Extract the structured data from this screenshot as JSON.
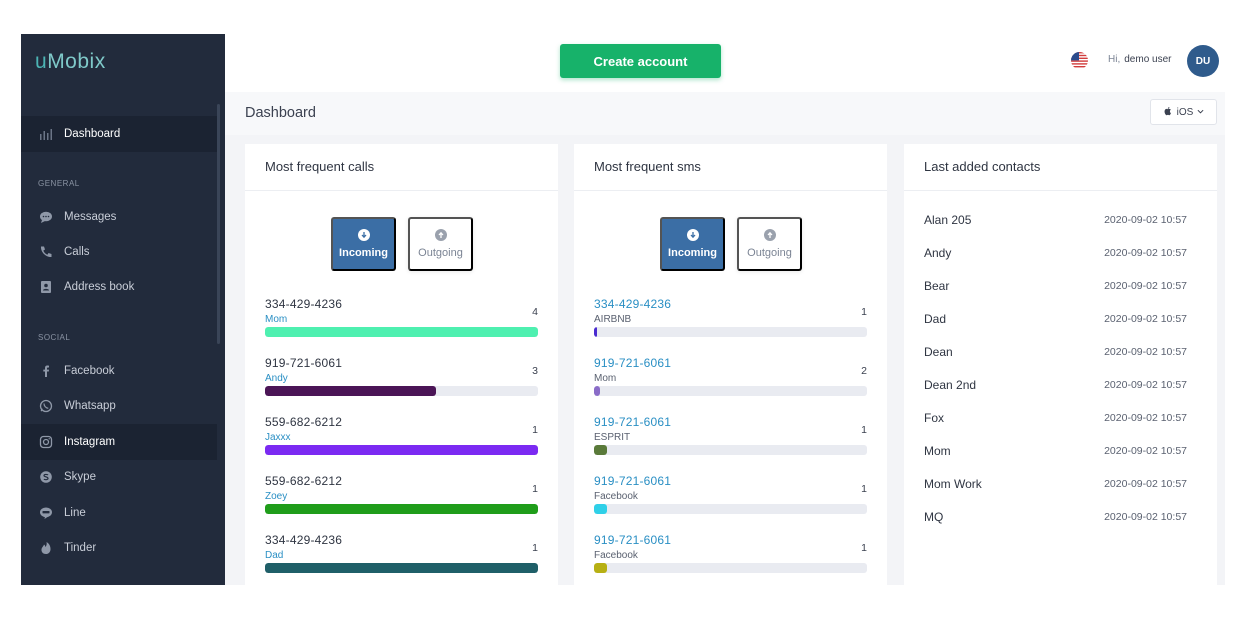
{
  "app": {
    "logo_prefix": "u",
    "logo_rest": "Mobix"
  },
  "sidebar": {
    "dashboard": "Dashboard",
    "general_label": "GENERAL",
    "general": [
      {
        "label": "Messages",
        "icon": "chat-bubble-icon"
      },
      {
        "label": "Calls",
        "icon": "phone-icon"
      },
      {
        "label": "Address book",
        "icon": "contact-book-icon"
      }
    ],
    "social_label": "SOCIAL",
    "social": [
      {
        "label": "Facebook",
        "icon": "facebook-icon"
      },
      {
        "label": "Whatsapp",
        "icon": "whatsapp-icon"
      },
      {
        "label": "Instagram",
        "icon": "instagram-icon",
        "active": true
      },
      {
        "label": "Skype",
        "icon": "skype-icon"
      },
      {
        "label": "Line",
        "icon": "line-icon"
      },
      {
        "label": "Tinder",
        "icon": "tinder-flame-icon"
      }
    ]
  },
  "header": {
    "create_button": "Create account",
    "greeting": "Hi,",
    "username": "demo user",
    "avatar": "DU"
  },
  "subheader": {
    "title": "Dashboard",
    "os": "iOS"
  },
  "calls": {
    "title": "Most frequent calls",
    "tab_incoming": "Incoming",
    "tab_outgoing": "Outgoing",
    "rows": [
      {
        "number": "334-429-4236",
        "name": "Mom",
        "count": "4",
        "fill": 1.0,
        "color": "#4ef0b0"
      },
      {
        "number": "919-721-6061",
        "name": "Andy",
        "count": "3",
        "fill": 0.625,
        "color": "#4b1556"
      },
      {
        "number": "559-682-6212",
        "name": "Jaxxx",
        "count": "1",
        "fill": 1.0,
        "color": "#7b2af2"
      },
      {
        "number": "559-682-6212",
        "name": "Zoey",
        "count": "1",
        "fill": 1.0,
        "color": "#1f9d1a"
      },
      {
        "number": "334-429-4236",
        "name": "Dad",
        "count": "1",
        "fill": 1.0,
        "color": "#1f5f68"
      }
    ]
  },
  "sms": {
    "title": "Most frequent sms",
    "tab_incoming": "Incoming",
    "tab_outgoing": "Outgoing",
    "rows": [
      {
        "number": "334-429-4236",
        "name": "AIRBNB",
        "count": "1",
        "fill": 0.011,
        "color": "#4a2bd0"
      },
      {
        "number": "919-721-6061",
        "name": "Mom",
        "count": "2",
        "fill": 0.022,
        "color": "#8a6cc8"
      },
      {
        "number": "919-721-6061",
        "name": "ESPRIT",
        "count": "1",
        "fill": 0.048,
        "color": "#5a7a3a"
      },
      {
        "number": "919-721-6061",
        "name": "Facebook",
        "count": "1",
        "fill": 0.048,
        "color": "#2fd0e8"
      },
      {
        "number": "919-721-6061",
        "name": "Facebook",
        "count": "1",
        "fill": 0.048,
        "color": "#b7b014"
      }
    ]
  },
  "contacts": {
    "title": "Last added contacts",
    "items": [
      {
        "name": "Alan 205",
        "date": "2020-09-02 10:57"
      },
      {
        "name": "Andy",
        "date": "2020-09-02 10:57"
      },
      {
        "name": "Bear",
        "date": "2020-09-02 10:57"
      },
      {
        "name": "Dad",
        "date": "2020-09-02 10:57"
      },
      {
        "name": "Dean",
        "date": "2020-09-02 10:57"
      },
      {
        "name": "Dean 2nd",
        "date": "2020-09-02 10:57"
      },
      {
        "name": "Fox",
        "date": "2020-09-02 10:57"
      },
      {
        "name": "Mom",
        "date": "2020-09-02 10:57"
      },
      {
        "name": "Mom Work",
        "date": "2020-09-02 10:57"
      },
      {
        "name": "MQ",
        "date": "2020-09-02 10:57"
      }
    ]
  },
  "colors": {
    "sidebar": "#222b3c",
    "accent_green": "#17b26a",
    "accent_blue": "#3b6ea5",
    "link": "#2a8fc4"
  }
}
